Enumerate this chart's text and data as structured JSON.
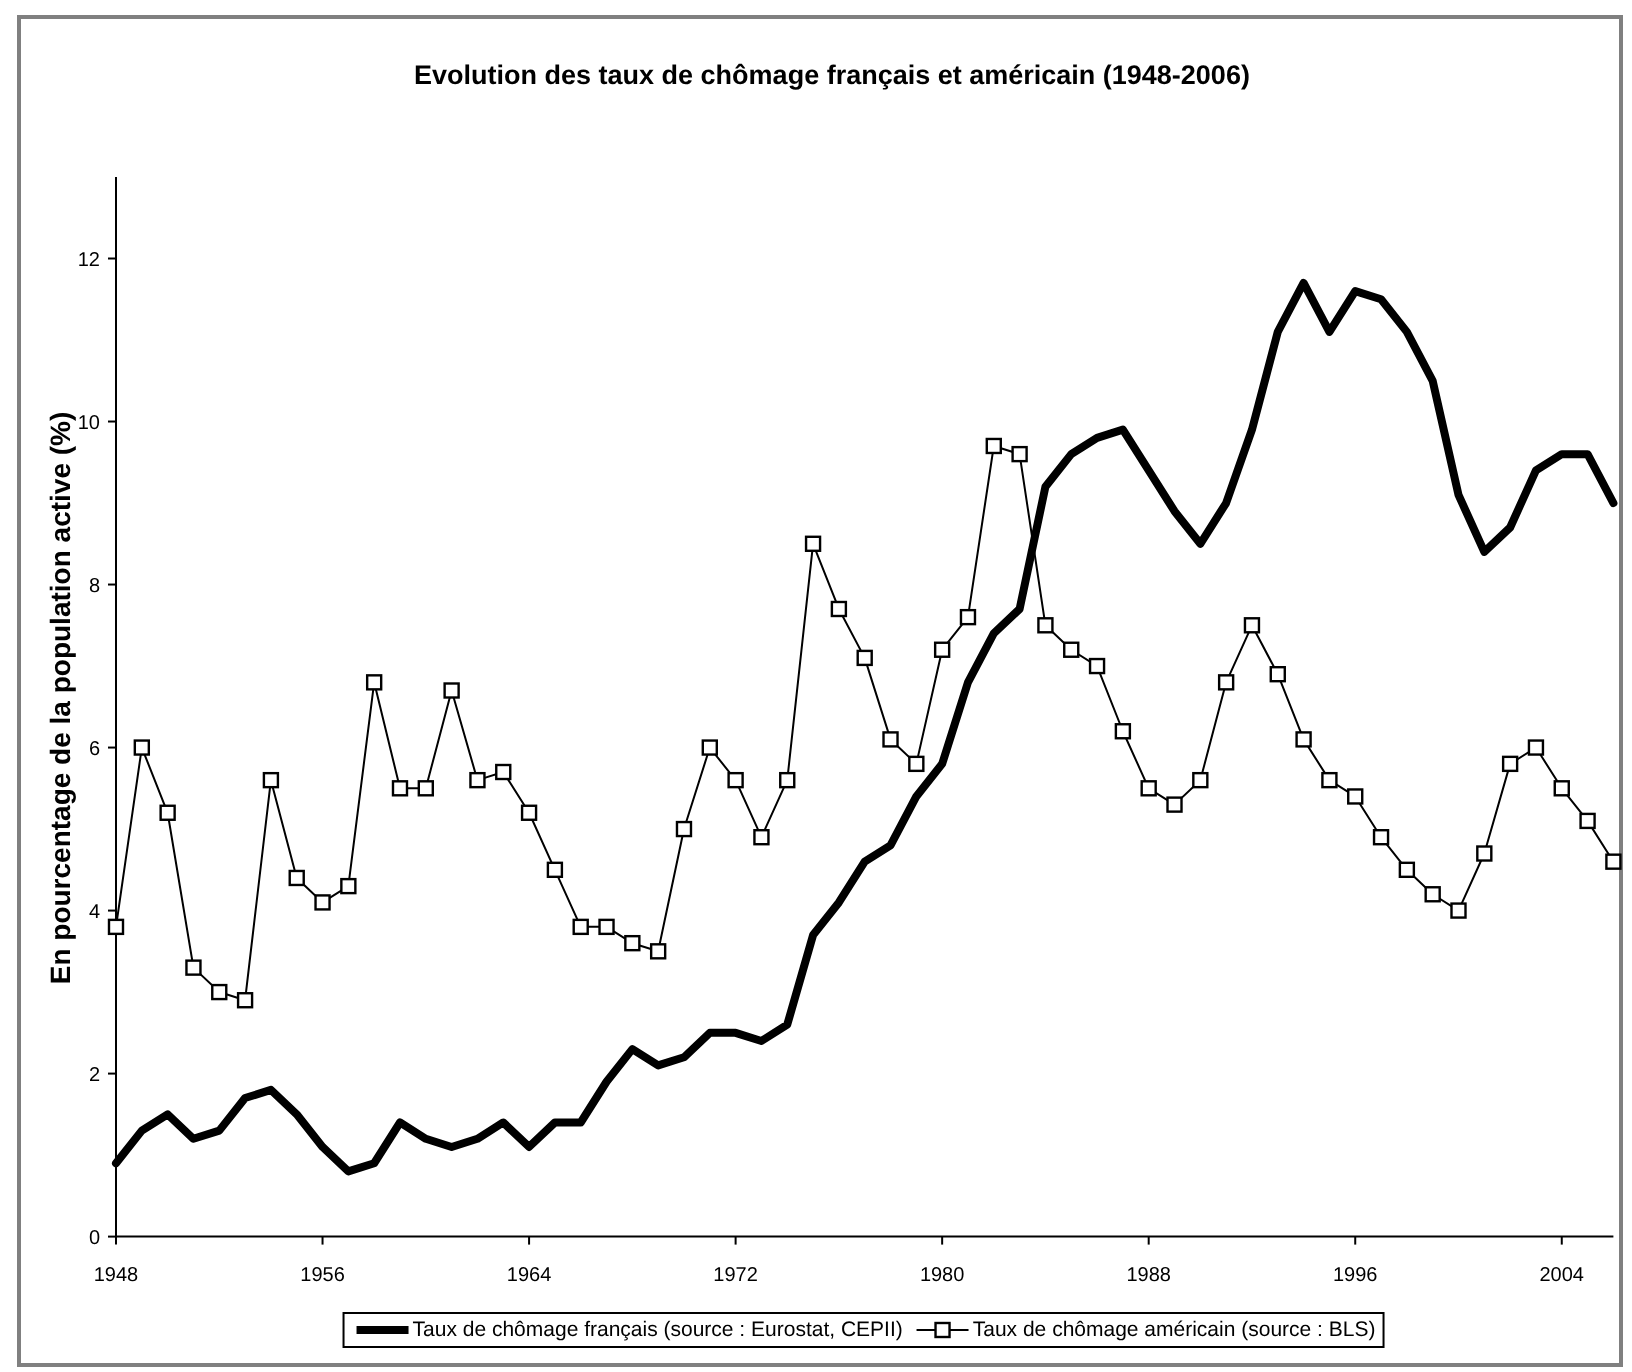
{
  "chart_data": {
    "type": "line",
    "title": "Evolution des taux de chômage français et américain (1948-2006)",
    "ylabel": "En pourcentage de la population active (%)",
    "x": [
      1948,
      1949,
      1950,
      1951,
      1952,
      1953,
      1954,
      1955,
      1956,
      1957,
      1958,
      1959,
      1960,
      1961,
      1962,
      1963,
      1964,
      1965,
      1966,
      1967,
      1968,
      1969,
      1970,
      1971,
      1972,
      1973,
      1974,
      1975,
      1976,
      1977,
      1978,
      1979,
      1980,
      1981,
      1982,
      1983,
      1984,
      1985,
      1986,
      1987,
      1988,
      1989,
      1990,
      1991,
      1992,
      1993,
      1994,
      1995,
      1996,
      1997,
      1998,
      1999,
      2000,
      2001,
      2002,
      2003,
      2004,
      2005,
      2006
    ],
    "series": [
      {
        "name": "Taux de chômage français (source : Eurostat, CEPII)",
        "color": "#000000",
        "values": [
          0.9,
          1.3,
          1.5,
          1.2,
          1.3,
          1.7,
          1.8,
          1.5,
          1.1,
          0.8,
          0.9,
          1.4,
          1.2,
          1.1,
          1.2,
          1.4,
          1.1,
          1.4,
          1.4,
          1.9,
          2.3,
          2.1,
          2.2,
          2.5,
          2.5,
          2.4,
          2.6,
          3.7,
          4.1,
          4.6,
          4.8,
          5.4,
          5.8,
          6.8,
          7.4,
          7.7,
          9.2,
          9.6,
          9.8,
          9.9,
          9.4,
          8.9,
          8.5,
          9.0,
          9.9,
          11.1,
          11.7,
          11.1,
          11.6,
          11.5,
          11.1,
          10.5,
          9.1,
          8.4,
          8.7,
          9.4,
          9.6,
          9.6,
          9.0
        ]
      },
      {
        "name": "Taux de chômage américain (source : BLS)",
        "color": "#000000",
        "marker": "square",
        "values": [
          3.8,
          6.0,
          5.2,
          3.3,
          3.0,
          2.9,
          5.6,
          4.4,
          4.1,
          4.3,
          6.8,
          5.5,
          5.5,
          6.7,
          5.6,
          5.7,
          5.2,
          4.5,
          3.8,
          3.8,
          3.6,
          3.5,
          5.0,
          6.0,
          5.6,
          4.9,
          5.6,
          8.5,
          7.7,
          7.1,
          6.1,
          5.8,
          7.2,
          7.6,
          9.7,
          9.6,
          7.5,
          7.2,
          7.0,
          6.2,
          5.5,
          5.3,
          5.6,
          6.8,
          7.5,
          6.9,
          6.1,
          5.6,
          5.4,
          4.9,
          4.5,
          4.2,
          4.0,
          4.7,
          5.8,
          6.0,
          5.5,
          5.1,
          4.6
        ]
      }
    ],
    "xlim": [
      1948,
      2006
    ],
    "xticks": [
      1948,
      1956,
      1964,
      1972,
      1980,
      1988,
      1996,
      2004
    ],
    "ylim": [
      0,
      13
    ],
    "yticks": [
      0,
      2,
      4,
      6,
      8,
      10,
      12
    ],
    "legend": "bottom"
  }
}
